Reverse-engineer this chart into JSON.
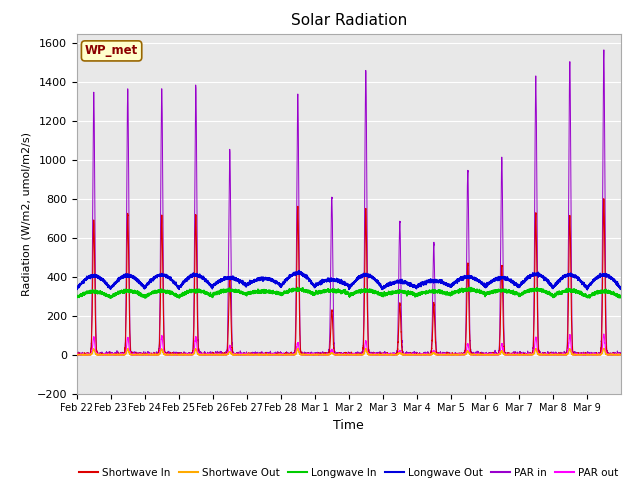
{
  "title": "Solar Radiation",
  "ylabel": "Radiation (W/m2, umol/m2/s)",
  "xlabel": "Time",
  "station_label": "WP_met",
  "ylim": [
    -200,
    1650
  ],
  "yticks": [
    -200,
    0,
    200,
    400,
    600,
    800,
    1000,
    1200,
    1400,
    1600
  ],
  "colors": {
    "shortwave_in": "#dd0000",
    "shortwave_out": "#ffaa00",
    "longwave_in": "#00cc00",
    "longwave_out": "#0000dd",
    "par_in": "#9900cc",
    "par_out": "#ff00ff"
  },
  "legend_labels": [
    "Shortwave In",
    "Shortwave Out",
    "Longwave In",
    "Longwave Out",
    "PAR in",
    "PAR out"
  ],
  "background_color": "#e8e8e8",
  "grid_color": "#ffffff",
  "n_days": 16,
  "xtick_labels": [
    "Feb 22",
    "Feb 23",
    "Feb 24",
    "Feb 25",
    "Feb 26",
    "Feb 27",
    "Feb 28",
    "Mar 1",
    "Mar 2",
    "Mar 3",
    "Mar 4",
    "Mar 5",
    "Mar 6",
    "Mar 7",
    "Mar 8",
    "Mar 9"
  ],
  "day_peak_shortwave": [
    690,
    715,
    710,
    720,
    390,
    0,
    760,
    230,
    750,
    260,
    260,
    470,
    460,
    730,
    720,
    800
  ],
  "day_peak_par_in": [
    1350,
    1360,
    1360,
    1390,
    1050,
    0,
    1340,
    810,
    1460,
    680,
    570,
    950,
    1010,
    1420,
    1510,
    1560
  ],
  "day_peak_par_out": [
    90,
    90,
    95,
    90,
    45,
    0,
    60,
    25,
    70,
    20,
    20,
    55,
    55,
    90,
    100,
    105
  ],
  "lw_out_base": [
    340,
    342,
    345,
    343,
    355,
    360,
    350,
    355,
    340,
    345,
    350,
    355,
    350,
    348,
    345,
    340
  ],
  "lw_out_amp": [
    65,
    65,
    65,
    65,
    40,
    30,
    70,
    30,
    70,
    30,
    30,
    45,
    45,
    65,
    65,
    70
  ],
  "lw_in_base": [
    295,
    298,
    298,
    300,
    310,
    315,
    310,
    315,
    305,
    308,
    310,
    315,
    310,
    305,
    300,
    295
  ],
  "lw_in_amp": [
    30,
    30,
    30,
    30,
    20,
    10,
    25,
    15,
    25,
    15,
    15,
    20,
    20,
    30,
    30,
    30
  ],
  "spike_sigma": 0.03
}
